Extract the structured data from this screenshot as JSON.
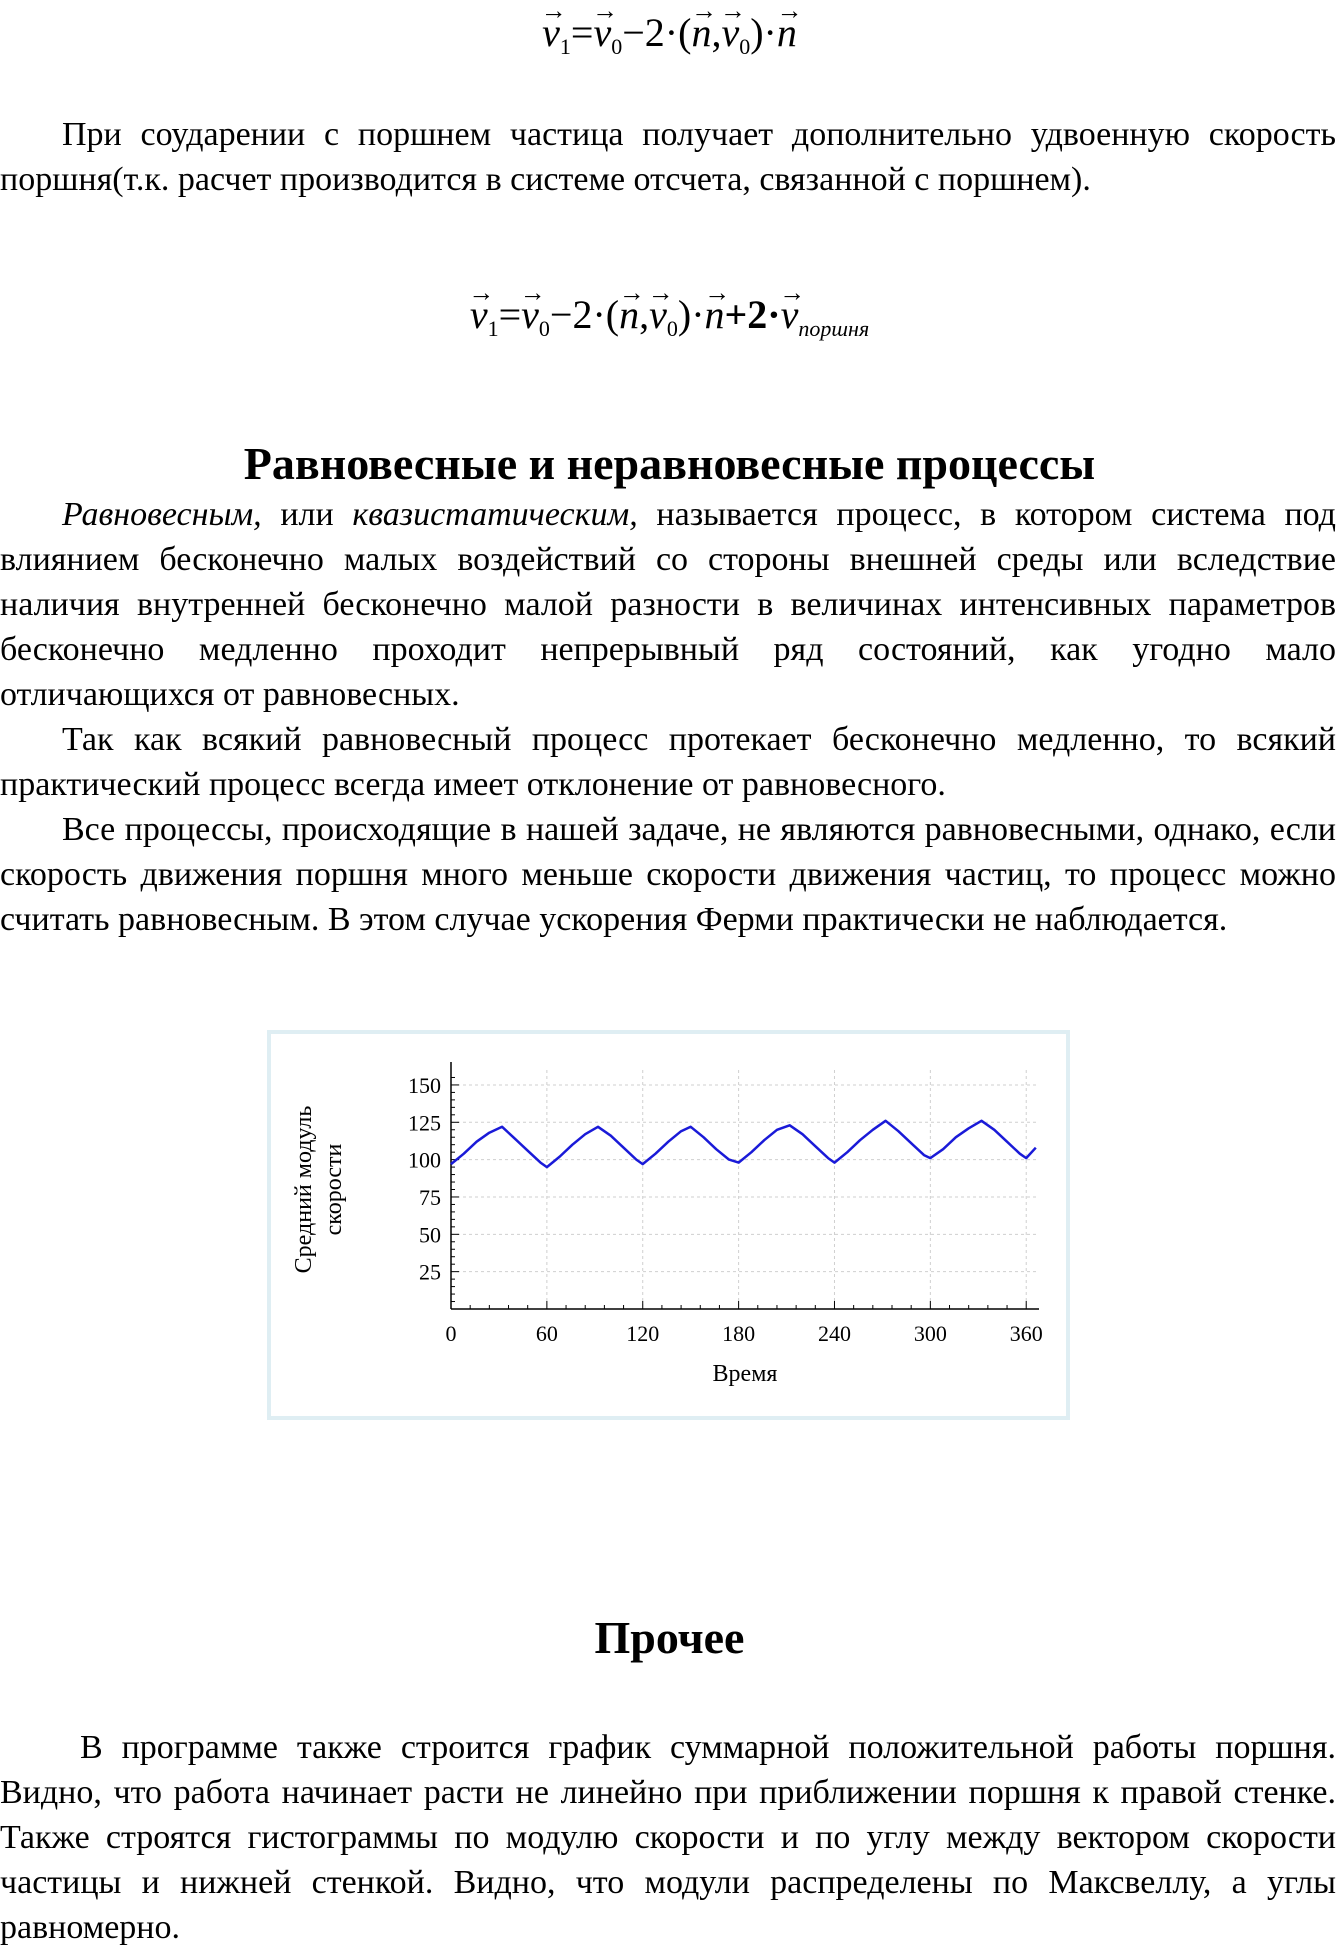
{
  "formula1": {
    "v1": "v",
    "v1_sub": "1",
    "eq": "=",
    "v0": "v",
    "v0_sub": "0",
    "minus": "−2·(",
    "n": "n",
    "comma": ",",
    "v0b": "v",
    "v0b_sub": "0",
    "close": ")·",
    "n2": "n"
  },
  "paragraph1": "При соударении с поршнем частица получает дополнительно удвоенную скорость поршня(т.к. расчет производится в системе отсчета, связанной с поршнем).",
  "formula2": {
    "v1": "v",
    "v1_sub": "1",
    "eq": "=",
    "v0": "v",
    "v0_sub": "0",
    "minus": "−2·(",
    "n": "n",
    "comma": ",",
    "v0b": "v",
    "v0b_sub": "0",
    "close": ")·",
    "n2": "n",
    "plus": "+2·",
    "vp": "v",
    "vp_sub": "поршня"
  },
  "heading1": "Равновесные и неравновесные процессы",
  "paragraph2": {
    "term1": "Равновесным,",
    "join": " или ",
    "term2": "квазистатическим,",
    "rest": " называется процесс, в котором система под влиянием бесконечно малых воздействий со стороны внешней среды или вследствие наличия внутренней бесконечно малой разности в величинах интенсивных параметров бесконечно медленно проходит непрерывный ряд состояний, как угодно мало отличающихся от равновесных."
  },
  "paragraph3": "Так как всякий равновесный процесс протекает бесконечно медленно, то всякий практический процесс всегда имеет отклонение от равновесного.",
  "paragraph4": "Все процессы, происходящие в нашей задаче, не являются равновесными, однако, если скорость движения поршня много меньше скорости движения частиц, то процесс можно считать равновесным. В этом случае ускорения Ферми практически не наблюдается.",
  "chart_data": {
    "type": "line",
    "title": "",
    "xlabel": "Время",
    "ylabel": "Средний модуль скорости",
    "ylabel_lines": [
      "Средний модуль",
      "скорости"
    ],
    "xlim": [
      0,
      368
    ],
    "ylim": [
      0,
      160
    ],
    "xticks": [
      0,
      60,
      120,
      180,
      240,
      300,
      360
    ],
    "yticks": [
      25,
      50,
      75,
      100,
      125,
      150
    ],
    "grid": true,
    "line_color": "#1a1ad8",
    "series": [
      {
        "x": [
          0,
          8,
          16,
          24,
          32,
          40,
          48,
          56,
          60,
          68,
          76,
          84,
          92,
          100,
          108,
          116,
          120,
          128,
          136,
          144,
          150,
          158,
          166,
          174,
          180,
          188,
          196,
          204,
          212,
          220,
          228,
          236,
          240,
          248,
          256,
          264,
          272,
          280,
          288,
          296,
          300,
          308,
          316,
          324,
          332,
          340,
          348,
          356,
          360,
          366
        ],
        "y": [
          97,
          104,
          112,
          118,
          122,
          114,
          106,
          98,
          95,
          102,
          110,
          117,
          122,
          116,
          108,
          100,
          97,
          104,
          112,
          119,
          122,
          115,
          107,
          100,
          98,
          105,
          113,
          120,
          123,
          117,
          109,
          101,
          98,
          105,
          113,
          120,
          126,
          119,
          111,
          103,
          101,
          107,
          115,
          121,
          126,
          120,
          112,
          104,
          101,
          108
        ]
      }
    ]
  },
  "heading2": "Прочее",
  "paragraph5": "В программе также строится график суммарной положительной работы поршня. Видно, что работа начинает расти не линейно при приближении поршня к правой стенке. Также строятся гистограммы по модулю скорости и по углу между вектором скорости частицы и нижней стенкой. Видно, что модули распределены по Максвеллу, а углы равномерно."
}
